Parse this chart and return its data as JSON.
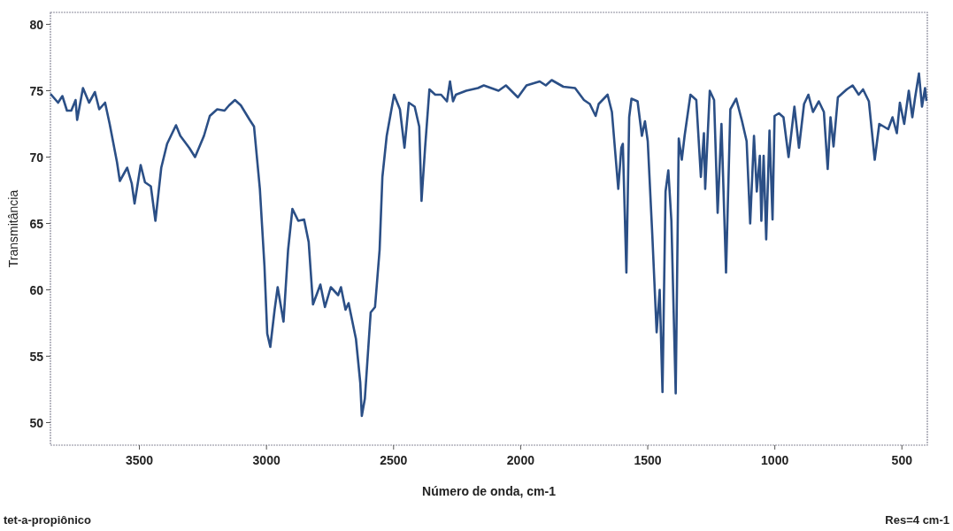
{
  "chart_data": {
    "type": "line",
    "xlabel": "Número de onda, cm-1",
    "ylabel": "Transmitância",
    "annotations": [
      "tet-a-propiônico",
      "Res=4 cm-1"
    ],
    "xlim": [
      3850,
      400
    ],
    "ylim": [
      48.3,
      80.9
    ],
    "xticks": [
      3500,
      3000,
      2500,
      2000,
      1500,
      1000,
      500
    ],
    "yticks": [
      50,
      55,
      60,
      65,
      70,
      75,
      80
    ],
    "grid": false,
    "marker": "none",
    "line_style": "solid",
    "series": [
      {
        "color": "#2b4f86",
        "x": [
          3847,
          3820,
          3803,
          3785,
          3768,
          3751,
          3745,
          3722,
          3698,
          3675,
          3658,
          3635,
          3617,
          3606,
          3588,
          3577,
          3548,
          3530,
          3519,
          3495,
          3478,
          3455,
          3437,
          3414,
          3391,
          3356,
          3339,
          3304,
          3281,
          3246,
          3223,
          3194,
          3165,
          3147,
          3124,
          3101,
          3066,
          3049,
          3026,
          3008,
          2997,
          2985,
          2968,
          2956,
          2933,
          2915,
          2898,
          2875,
          2852,
          2834,
          2817,
          2788,
          2770,
          2747,
          2718,
          2707,
          2689,
          2677,
          2648,
          2631,
          2625,
          2613,
          2590,
          2573,
          2555,
          2544,
          2527,
          2498,
          2475,
          2457,
          2440,
          2417,
          2399,
          2390,
          2376,
          2359,
          2336,
          2313,
          2290,
          2278,
          2266,
          2255,
          2214,
          2168,
          2145,
          2087,
          2058,
          2011,
          1977,
          1925,
          1901,
          1878,
          1832,
          1786,
          1751,
          1728,
          1705,
          1693,
          1658,
          1641,
          1616,
          1604,
          1598,
          1584,
          1573,
          1564,
          1540,
          1523,
          1511,
          1500,
          1482,
          1465,
          1453,
          1442,
          1430,
          1419,
          1407,
          1390,
          1378,
          1366,
          1355,
          1332,
          1309,
          1291,
          1279,
          1274,
          1256,
          1239,
          1225,
          1210,
          1192,
          1175,
          1152,
          1129,
          1111,
          1097,
          1082,
          1071,
          1059,
          1053,
          1044,
          1034,
          1021,
          1009,
          1001,
          984,
          966,
          946,
          923,
          905,
          885,
          868,
          850,
          827,
          807,
          792,
          781,
          769,
          752,
          717,
          694,
          670,
          653,
          630,
          607,
          589,
          554,
          537,
          520,
          508,
          491,
          473,
          459,
          448,
          433,
          421,
          409,
          404
        ],
        "values": [
          74.7,
          74.1,
          74.6,
          73.5,
          73.5,
          74.3,
          72.8,
          75.2,
          74.1,
          74.9,
          73.6,
          74.1,
          72.5,
          71.4,
          69.6,
          68.2,
          69.2,
          68.0,
          66.5,
          69.4,
          68.1,
          67.8,
          65.2,
          69.2,
          71.0,
          72.4,
          71.6,
          70.7,
          70.0,
          71.6,
          73.1,
          73.6,
          73.5,
          73.9,
          74.3,
          73.9,
          72.8,
          72.3,
          67.6,
          61.8,
          56.7,
          55.7,
          58.5,
          60.2,
          57.6,
          63.0,
          66.1,
          65.2,
          65.3,
          63.6,
          58.9,
          60.4,
          58.7,
          60.2,
          59.6,
          60.2,
          58.5,
          59.0,
          56.3,
          53.0,
          50.5,
          51.8,
          58.3,
          58.7,
          63.0,
          68.5,
          71.6,
          74.7,
          73.6,
          70.7,
          74.1,
          73.8,
          72.3,
          66.7,
          70.7,
          75.1,
          74.7,
          74.7,
          74.2,
          75.7,
          74.2,
          74.7,
          75.0,
          75.2,
          75.4,
          75.0,
          75.4,
          74.5,
          75.4,
          75.7,
          75.4,
          75.8,
          75.3,
          75.2,
          74.3,
          74.0,
          73.1,
          74.0,
          74.7,
          73.4,
          67.6,
          70.7,
          71.0,
          61.3,
          73.0,
          74.4,
          74.2,
          71.6,
          72.7,
          71.2,
          64.1,
          56.8,
          60.0,
          52.3,
          67.4,
          69.0,
          65.2,
          52.2,
          71.4,
          69.8,
          71.6,
          74.7,
          74.3,
          68.5,
          71.8,
          67.6,
          75.0,
          74.3,
          65.8,
          72.5,
          61.3,
          73.6,
          74.4,
          72.7,
          71.2,
          65.0,
          71.6,
          67.4,
          70.1,
          65.2,
          70.1,
          63.8,
          72.0,
          65.3,
          73.1,
          73.3,
          73.0,
          70.0,
          73.8,
          70.7,
          74.0,
          74.7,
          73.4,
          74.2,
          73.4,
          69.1,
          73.0,
          70.8,
          74.5,
          75.1,
          75.4,
          74.7,
          75.1,
          74.2,
          69.8,
          72.5,
          72.1,
          73.0,
          71.8,
          74.1,
          72.5,
          75.0,
          73.0,
          74.5,
          76.3,
          73.8,
          75.2,
          74.3
        ]
      }
    ]
  }
}
